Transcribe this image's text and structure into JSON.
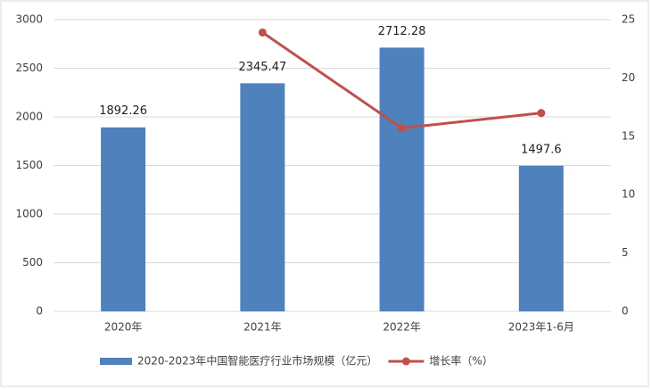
{
  "chart_data": {
    "type": "bar",
    "categories": [
      "2020年",
      "2021年",
      "2022年",
      "2023年1-6月"
    ],
    "series": [
      {
        "name": "2020-2023年中国智能医疗行业市场规模（亿元）",
        "type": "bar",
        "color": "#4f81bd",
        "values": [
          1892.26,
          2345.47,
          2712.28,
          1497.6
        ]
      },
      {
        "name": "增长率（%）",
        "type": "line",
        "axis": "y2",
        "color": "#c0504d",
        "values": [
          null,
          23.9,
          15.7,
          17.0
        ]
      }
    ],
    "ylim": [
      0,
      3000
    ],
    "yticks": [
      0,
      500,
      1000,
      1500,
      2000,
      2500,
      3000
    ],
    "y2lim": [
      0,
      25
    ],
    "y2ticks": [
      0,
      5,
      10,
      15,
      20,
      25
    ],
    "grid": true,
    "legend": "bottom"
  }
}
